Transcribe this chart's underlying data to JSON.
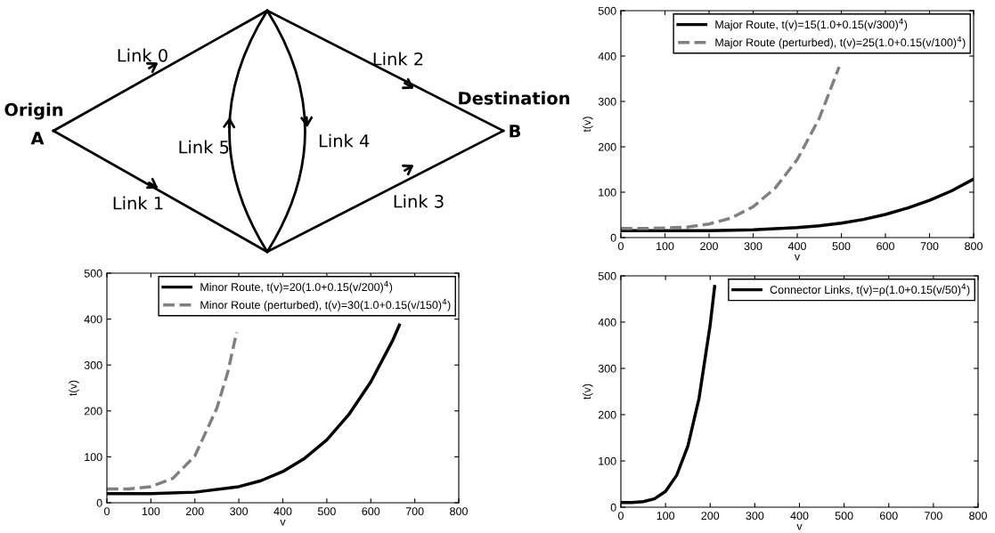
{
  "chart_data": [
    {
      "type": "other",
      "annotations": [
        "Link 0",
        "Link 1",
        "Link 2",
        "Link 3",
        "Link 4",
        "Link 5",
        "Origin",
        "A",
        "Destination",
        "B"
      ]
    },
    {
      "type": "line",
      "xlabel": "v",
      "ylabel": "t(v)",
      "xlim": [
        0,
        800
      ],
      "ylim": [
        0,
        500
      ],
      "xticks": [
        0,
        100,
        200,
        300,
        400,
        500,
        600,
        700,
        800
      ],
      "yticks": [
        0,
        100,
        200,
        300,
        400,
        500
      ],
      "legend": "top right",
      "series": [
        {
          "name": "Major Route, t(v)=15(1.0+0.15(v/300)$^{4}$)",
          "color": "#000000",
          "line_style": "solid",
          "x": [
            0,
            100,
            200,
            300,
            400,
            450,
            500,
            550,
            600,
            650,
            700,
            750,
            800
          ],
          "values": [
            15,
            15,
            15,
            17,
            22,
            26,
            32,
            40,
            51,
            65,
            82,
            103,
            129
          ]
        },
        {
          "name": "Major Route (perturbed), t(v)=25(1.0+0.15(v/100)$^{4}$)",
          "color": "#808080",
          "line_style": "dashed",
          "x": [
            0,
            50,
            100,
            150,
            200,
            250,
            300,
            350,
            400,
            450,
            495
          ],
          "values": [
            20,
            20,
            21,
            23,
            30,
            43,
            68,
            109,
            172,
            263,
            376
          ]
        }
      ]
    },
    {
      "type": "line",
      "xlabel": "v",
      "ylabel": "t(v)",
      "xlim": [
        0,
        800
      ],
      "ylim": [
        0,
        500
      ],
      "xticks": [
        0,
        100,
        200,
        300,
        400,
        500,
        600,
        700,
        800
      ],
      "yticks": [
        0,
        100,
        200,
        300,
        400,
        500
      ],
      "legend": "top right",
      "series": [
        {
          "name": "Minor Route, t(v)=20(1.0+0.15(v/200)$^{4}$)",
          "color": "#000000",
          "line_style": "solid",
          "x": [
            0,
            100,
            200,
            300,
            350,
            400,
            450,
            500,
            550,
            600,
            650,
            665
          ],
          "values": [
            20,
            20,
            23,
            35,
            48,
            68,
            97,
            137,
            192,
            263,
            354,
            387
          ]
        },
        {
          "name": "Minor Route (perturbed), t(v)=30(1.0+0.15(v/150)$^{4}$)",
          "color": "#808080",
          "line_style": "dashed",
          "x": [
            0,
            50,
            100,
            150,
            200,
            250,
            275,
            295
          ],
          "values": [
            30,
            30,
            35,
            53,
            102,
            206,
            285,
            371
          ]
        }
      ]
    },
    {
      "type": "line",
      "xlabel": "v",
      "ylabel": "t(v)",
      "xlim": [
        0,
        800
      ],
      "ylim": [
        0,
        500
      ],
      "xticks": [
        0,
        100,
        200,
        300,
        400,
        500,
        600,
        700,
        800
      ],
      "yticks": [
        0,
        100,
        200,
        300,
        400,
        500
      ],
      "legend": "top right",
      "series": [
        {
          "name": "Connector Links, t(v)=ρ(1.0+0.15(v/50)$^{4}$)",
          "color": "#000000",
          "line_style": "solid",
          "x": [
            0,
            25,
            50,
            75,
            100,
            125,
            150,
            175,
            200,
            210
          ],
          "values": [
            10,
            10,
            12,
            18,
            34,
            69,
            132,
            235,
            394,
            477
          ]
        }
      ]
    }
  ]
}
